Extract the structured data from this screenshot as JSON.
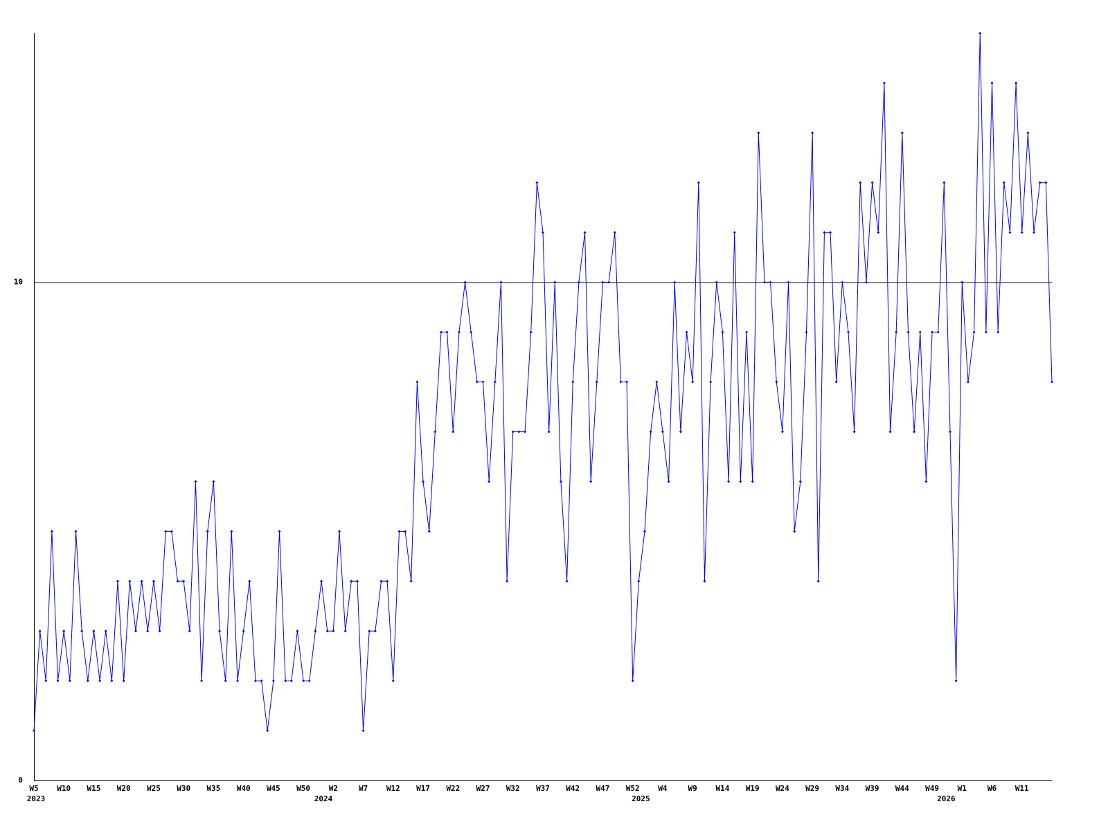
{
  "chart_data": {
    "type": "line",
    "categories": [
      "W5",
      null,
      null,
      null,
      null,
      "W10",
      null,
      null,
      null,
      null,
      "W15",
      null,
      null,
      null,
      null,
      "W20",
      null,
      null,
      null,
      null,
      "W25",
      null,
      null,
      null,
      null,
      "W30",
      null,
      null,
      null,
      null,
      "W35",
      null,
      null,
      null,
      null,
      "W40",
      null,
      null,
      null,
      null,
      "W45",
      null,
      null,
      null,
      null,
      "W50",
      null,
      null,
      null,
      null,
      "W2",
      null,
      null,
      null,
      null,
      "W7",
      null,
      null,
      null,
      null,
      "W12",
      null,
      null,
      null,
      null,
      "W17",
      null,
      null,
      null,
      null,
      "W22",
      null,
      null,
      null,
      null,
      "W27",
      null,
      null,
      null,
      null,
      "W32",
      null,
      null,
      null,
      null,
      "W37",
      null,
      null,
      null,
      null,
      "W42",
      null,
      null,
      null,
      null,
      "W47",
      null,
      null,
      null,
      null,
      "W52",
      null,
      null,
      null,
      null,
      "W4",
      null,
      null,
      null,
      null,
      "W9",
      null,
      null,
      null,
      null,
      "W14",
      null,
      null,
      null,
      null,
      "W19",
      null,
      null,
      null,
      null,
      "W24",
      null,
      null,
      null,
      null,
      "W29",
      null,
      null,
      null,
      null,
      "W34",
      null,
      null,
      null,
      null,
      "W39",
      null,
      null,
      null,
      null,
      "W44",
      null,
      null,
      null,
      null,
      "W49",
      null,
      null,
      null,
      null,
      "W1",
      null,
      null,
      null,
      null,
      "W6",
      null,
      null,
      null,
      null,
      "W11",
      null,
      null,
      null,
      null,
      null
    ],
    "year_labels": [
      "2023",
      null,
      null,
      null,
      null,
      null,
      null,
      null,
      null,
      null,
      null,
      null,
      null,
      null,
      null,
      null,
      null,
      null,
      null,
      null,
      null,
      null,
      null,
      null,
      null,
      null,
      null,
      null,
      null,
      null,
      null,
      null,
      null,
      null,
      null,
      null,
      null,
      null,
      null,
      null,
      null,
      null,
      null,
      null,
      null,
      null,
      null,
      null,
      "2024",
      null,
      null,
      null,
      null,
      null,
      null,
      null,
      null,
      null,
      null,
      null,
      null,
      null,
      null,
      null,
      null,
      null,
      null,
      null,
      null,
      null,
      null,
      null,
      null,
      null,
      null,
      null,
      null,
      null,
      null,
      null,
      null,
      null,
      null,
      null,
      null,
      null,
      null,
      null,
      null,
      null,
      null,
      null,
      null,
      null,
      null,
      null,
      null,
      null,
      null,
      null,
      null,
      "2025",
      null,
      null,
      null,
      null,
      null,
      null,
      null,
      null,
      null,
      null,
      null,
      null,
      null,
      null,
      null,
      null,
      null,
      null,
      null,
      null,
      null,
      null,
      null,
      null,
      null,
      null,
      null,
      null,
      null,
      null,
      null,
      null,
      null,
      null,
      null,
      null,
      null,
      null,
      null,
      null,
      null,
      null,
      null,
      null,
      null,
      null,
      null,
      null,
      null,
      null,
      "2026",
      null,
      null,
      null,
      null,
      null,
      null,
      null,
      null,
      null,
      null,
      null,
      null,
      null,
      null,
      null
    ],
    "series": [
      {
        "color": "#0000ff",
        "values": [
          1,
          3,
          2,
          5,
          2,
          3,
          2,
          5,
          3,
          2,
          3,
          2,
          3,
          2,
          4,
          2,
          4,
          3,
          4,
          3,
          4,
          3,
          5,
          5,
          4,
          4,
          3,
          6,
          2,
          5,
          6,
          3,
          2,
          5,
          2,
          3,
          4,
          2,
          2,
          1,
          2,
          5,
          2,
          2,
          3,
          2,
          2,
          3,
          4,
          3,
          3,
          5,
          3,
          4,
          4,
          1,
          3,
          3,
          4,
          4,
          2,
          5,
          5,
          4,
          8,
          6,
          5,
          7,
          9,
          9,
          7,
          9,
          10,
          9,
          8,
          8,
          6,
          8,
          10,
          4,
          7,
          7,
          7,
          9,
          12,
          11,
          7,
          10,
          6,
          4,
          8,
          10,
          11,
          6,
          8,
          10,
          10,
          11,
          8,
          8,
          2,
          4,
          5,
          7,
          8,
          7,
          6,
          10,
          7,
          9,
          8,
          12,
          4,
          8,
          10,
          9,
          6,
          11,
          6,
          9,
          6,
          13,
          10,
          10,
          8,
          7,
          10,
          5,
          6,
          9,
          13,
          4,
          11,
          11,
          8,
          10,
          9,
          7,
          12,
          10,
          12,
          11,
          14,
          7,
          9,
          13,
          9,
          7,
          9,
          6,
          9,
          9,
          12,
          7,
          2,
          10,
          8,
          9,
          15,
          9,
          14,
          9,
          12,
          11,
          14,
          11,
          13,
          11,
          12,
          12,
          8
        ]
      }
    ],
    "ylim": [
      0,
      15
    ],
    "yticks": [
      0,
      10
    ],
    "grid": true
  }
}
